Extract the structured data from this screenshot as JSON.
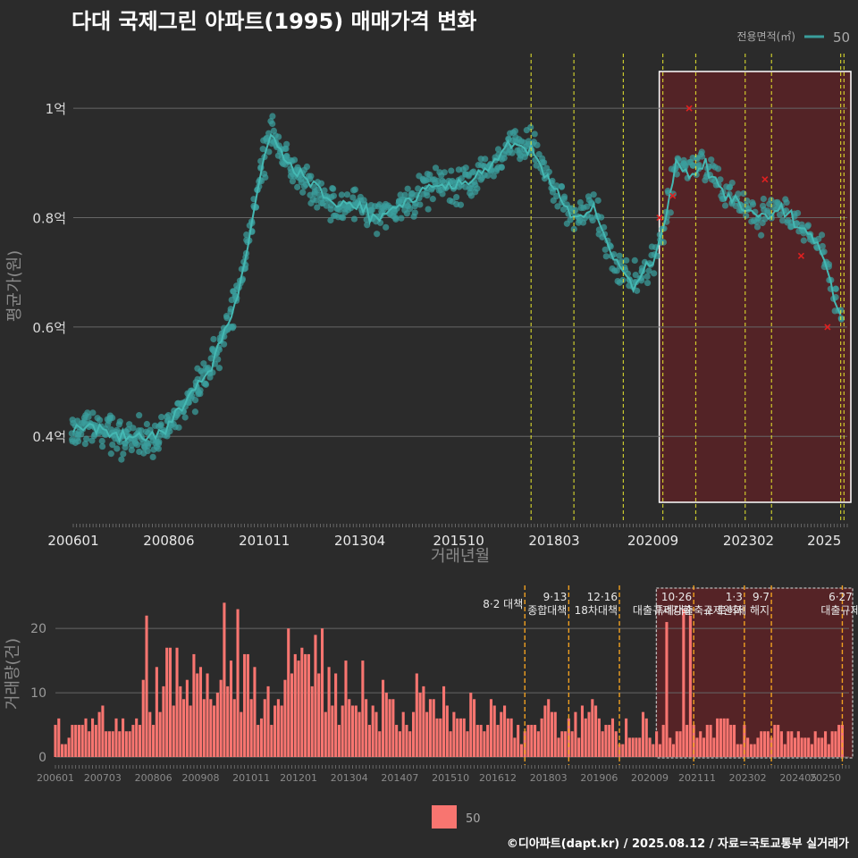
{
  "title": "다대 국제그린 아파트(1995) 매매가격 변화",
  "footer": "©디아파트(dapt.kr) / 2025.08.12 / 자료=국토교통부 실거래가",
  "colors": {
    "background": "#2b2b2b",
    "price": "#3a9e9c",
    "volume": "#f87570",
    "highlight": "#5a2226",
    "policy_price": "#e6e62e",
    "policy_volume": "#f0a020"
  },
  "chart_data": [
    {
      "type": "scatter",
      "title": "다대 국제그린 아파트(1995) 매매가격 변화",
      "xlabel": "거래년월",
      "ylabel": "평균가(원)",
      "x_ticks": [
        "200601",
        "200806",
        "201011",
        "201304",
        "201510",
        "201803",
        "202009",
        "202302",
        "2025"
      ],
      "y_ticks": [
        "0.4억",
        "0.6억",
        "0.8억",
        "1억"
      ],
      "ylim": [
        0.25,
        1.1
      ],
      "ylim_unit": "억",
      "legend": {
        "title": "전용면적(㎡)",
        "entries": [
          "50"
        ],
        "position": "top-right"
      },
      "grid": true,
      "series": [
        {
          "name": "50",
          "x": [
            "2006-01",
            "2006-07",
            "2007-01",
            "2007-07",
            "2008-01",
            "2008-06",
            "2008-12",
            "2009-06",
            "2009-12",
            "2010-03",
            "2010-06",
            "2010-09",
            "2010-12",
            "2011-01",
            "2011-04",
            "2011-09",
            "2012-03",
            "2012-09",
            "2013-03",
            "2013-09",
            "2014-03",
            "2014-09",
            "2015-03",
            "2015-09",
            "2016-03",
            "2016-09",
            "2017-03",
            "2017-09",
            "2018-03",
            "2018-09",
            "2019-03",
            "2019-09",
            "2020-03",
            "2020-09",
            "2021-01",
            "2021-04",
            "2021-08",
            "2022-01",
            "2022-06",
            "2022-12",
            "2023-06",
            "2023-12",
            "2024-06",
            "2024-12",
            "2025-03",
            "2025-06"
          ],
          "y": [
            0.41,
            0.42,
            0.4,
            0.4,
            0.4,
            0.42,
            0.47,
            0.52,
            0.6,
            0.66,
            0.75,
            0.85,
            0.94,
            0.95,
            0.92,
            0.88,
            0.85,
            0.82,
            0.82,
            0.8,
            0.82,
            0.84,
            0.86,
            0.86,
            0.87,
            0.9,
            0.94,
            0.92,
            0.85,
            0.8,
            0.82,
            0.72,
            0.68,
            0.72,
            0.8,
            0.9,
            0.88,
            0.9,
            0.85,
            0.82,
            0.8,
            0.82,
            0.78,
            0.74,
            0.68,
            0.62
          ]
        }
      ],
      "markers": [
        {
          "x": "2020-11",
          "y": 0.8
        },
        {
          "x": "2021-03",
          "y": 0.84
        },
        {
          "x": "2021-08",
          "y": 1.0
        },
        {
          "x": "2023-07",
          "y": 0.87
        },
        {
          "x": "2024-06",
          "y": 0.73
        },
        {
          "x": "2025-02",
          "y": 0.6
        }
      ],
      "highlight_range": [
        "2020-12",
        "2025-08"
      ],
      "policy_lines": [
        "2017-08",
        "2018-09",
        "2019-12",
        "2020-12",
        "2021-10",
        "2023-01",
        "2023-09",
        "2025-06",
        "2025-07"
      ]
    },
    {
      "type": "bar",
      "ylabel": "거래량(건)",
      "x_ticks": [
        "200601",
        "200703",
        "200806",
        "200908",
        "201011",
        "201201",
        "201304",
        "201407",
        "201510",
        "201612",
        "201803",
        "201906",
        "202009",
        "202111",
        "202302",
        "202405",
        "20250"
      ],
      "y_ticks": [
        "0",
        "10",
        "20"
      ],
      "ylim": [
        0,
        26
      ],
      "legend": {
        "entries": [
          "50"
        ],
        "position": "bottom"
      },
      "grid": true,
      "series": [
        {
          "name": "50",
          "monthly_avg": [
            4.5,
            5,
            6,
            4,
            9,
            12,
            10,
            8,
            11,
            9,
            13,
            12,
            9,
            10,
            8,
            7,
            9,
            8,
            7,
            6,
            5,
            4,
            6,
            5,
            6,
            4,
            5,
            4,
            4,
            4,
            6,
            3,
            3,
            4,
            3,
            4
          ],
          "spikes": [
            {
              "x": "2008-04",
              "y": 22
            },
            {
              "x": "2010-03",
              "y": 24
            },
            {
              "x": "2010-07",
              "y": 23
            },
            {
              "x": "2012-08",
              "y": 20
            },
            {
              "x": "2013-08",
              "y": 15
            },
            {
              "x": "2021-02",
              "y": 21
            },
            {
              "x": "2021-07",
              "y": 23
            },
            {
              "x": "2021-09",
              "y": 22
            }
          ]
        }
      ],
      "annotations": [
        {
          "x": "2017-08",
          "lines": [
            "8·2 대책"
          ]
        },
        {
          "x": "2018-09",
          "lines": [
            "9·13",
            "종합대책"
          ]
        },
        {
          "x": "2019-12",
          "lines": [
            "12·16",
            "18차대책"
          ]
        },
        {
          "x": "2021-10",
          "lines": [
            "10·26",
            "대출규제강화"
          ]
        },
        {
          "x": "2023-01",
          "lines": [
            "1·3",
            "규제완화"
          ]
        },
        {
          "x": "2023-09",
          "lines": [
            "9·7",
            "특례대출축소 토허제 해지"
          ]
        },
        {
          "x": "2025-06",
          "lines": [
            "6·27",
            "대출규제"
          ]
        }
      ],
      "highlight_range": [
        "2020-12",
        "2025-08"
      ]
    }
  ]
}
